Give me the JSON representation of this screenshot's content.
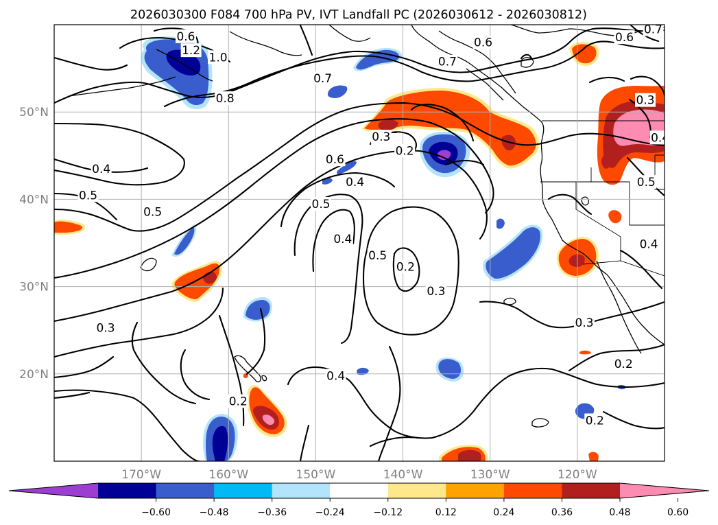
{
  "title": "2026030300 F084 700 hPa PV, IVT Landfall PC (2026030612 - 2026030812)",
  "map": {
    "lon_range": [
      -180,
      -110
    ],
    "lat_range": [
      10,
      60
    ],
    "lat_ticks": [
      {
        "value": 50,
        "label": "50°N"
      },
      {
        "value": 40,
        "label": "40°N"
      },
      {
        "value": 30,
        "label": "30°N"
      },
      {
        "value": 20,
        "label": "20°N"
      }
    ],
    "lon_ticks": [
      {
        "value": -170,
        "label": "170°W"
      },
      {
        "value": -160,
        "label": "160°W"
      },
      {
        "value": -150,
        "label": "150°W"
      },
      {
        "value": -140,
        "label": "140°W"
      },
      {
        "value": -130,
        "label": "130°W"
      },
      {
        "value": -120,
        "label": "120°W"
      }
    ],
    "contour_labels": [
      {
        "text": "1.2",
        "lon": -164.3,
        "lat": 57.0
      },
      {
        "text": "1.0",
        "lon": -161.2,
        "lat": 56.2
      },
      {
        "text": "0.8",
        "lon": -160.4,
        "lat": 51.5
      },
      {
        "text": "0.7",
        "lon": -149.2,
        "lat": 53.8
      },
      {
        "text": "0.6",
        "lon": -164.9,
        "lat": 58.6
      },
      {
        "text": "0.7",
        "lon": -134.9,
        "lat": 55.7
      },
      {
        "text": "0.6",
        "lon": -130.8,
        "lat": 57.9
      },
      {
        "text": "0.6",
        "lon": -114.6,
        "lat": 58.5
      },
      {
        "text": "0.7",
        "lon": -111.3,
        "lat": 59.4
      },
      {
        "text": "0.3",
        "lon": -112.2,
        "lat": 51.3
      },
      {
        "text": "0.4",
        "lon": -110.5,
        "lat": 47.0
      },
      {
        "text": "0.5",
        "lon": -112.1,
        "lat": 41.9
      },
      {
        "text": "0.4",
        "lon": -111.8,
        "lat": 34.8
      },
      {
        "text": "0.6",
        "lon": -147.8,
        "lat": 44.5
      },
      {
        "text": "0.4",
        "lon": -145.5,
        "lat": 41.9
      },
      {
        "text": "0.3",
        "lon": -142.5,
        "lat": 47.1
      },
      {
        "text": "0.2",
        "lon": -139.8,
        "lat": 45.5
      },
      {
        "text": "0.5",
        "lon": -149.4,
        "lat": 39.4
      },
      {
        "text": "0.4",
        "lon": -174.6,
        "lat": 43.4
      },
      {
        "text": "0.5",
        "lon": -176.1,
        "lat": 40.4
      },
      {
        "text": "0.5",
        "lon": -168.7,
        "lat": 38.5
      },
      {
        "text": "0.4",
        "lon": -146.9,
        "lat": 35.4
      },
      {
        "text": "0.5",
        "lon": -142.9,
        "lat": 33.5
      },
      {
        "text": "0.2",
        "lon": -139.7,
        "lat": 32.2
      },
      {
        "text": "0.3",
        "lon": -136.2,
        "lat": 29.4
      },
      {
        "text": "0.3",
        "lon": -174.1,
        "lat": 25.2
      },
      {
        "text": "0.3",
        "lon": -119.2,
        "lat": 25.8
      },
      {
        "text": "0.2",
        "lon": -114.7,
        "lat": 21.1
      },
      {
        "text": "0.4",
        "lon": -147.7,
        "lat": 19.7
      },
      {
        "text": "0.2",
        "lon": -158.9,
        "lat": 16.8
      },
      {
        "text": "0.2",
        "lon": -118.0,
        "lat": 14.6
      }
    ]
  },
  "colorbar": {
    "tick_labels": [
      "−0.60",
      "−0.48",
      "−0.36",
      "−0.24",
      "−0.12",
      "0.12",
      "0.24",
      "0.36",
      "0.48",
      "0.60"
    ],
    "colors": [
      "#9b3ed1",
      "#000096",
      "#3a5dce",
      "#00b9f5",
      "#b2e4fb",
      "#ffffff",
      "#fde98c",
      "#fea200",
      "#fd4a00",
      "#b21f1f",
      "#fd8bb2"
    ]
  }
}
